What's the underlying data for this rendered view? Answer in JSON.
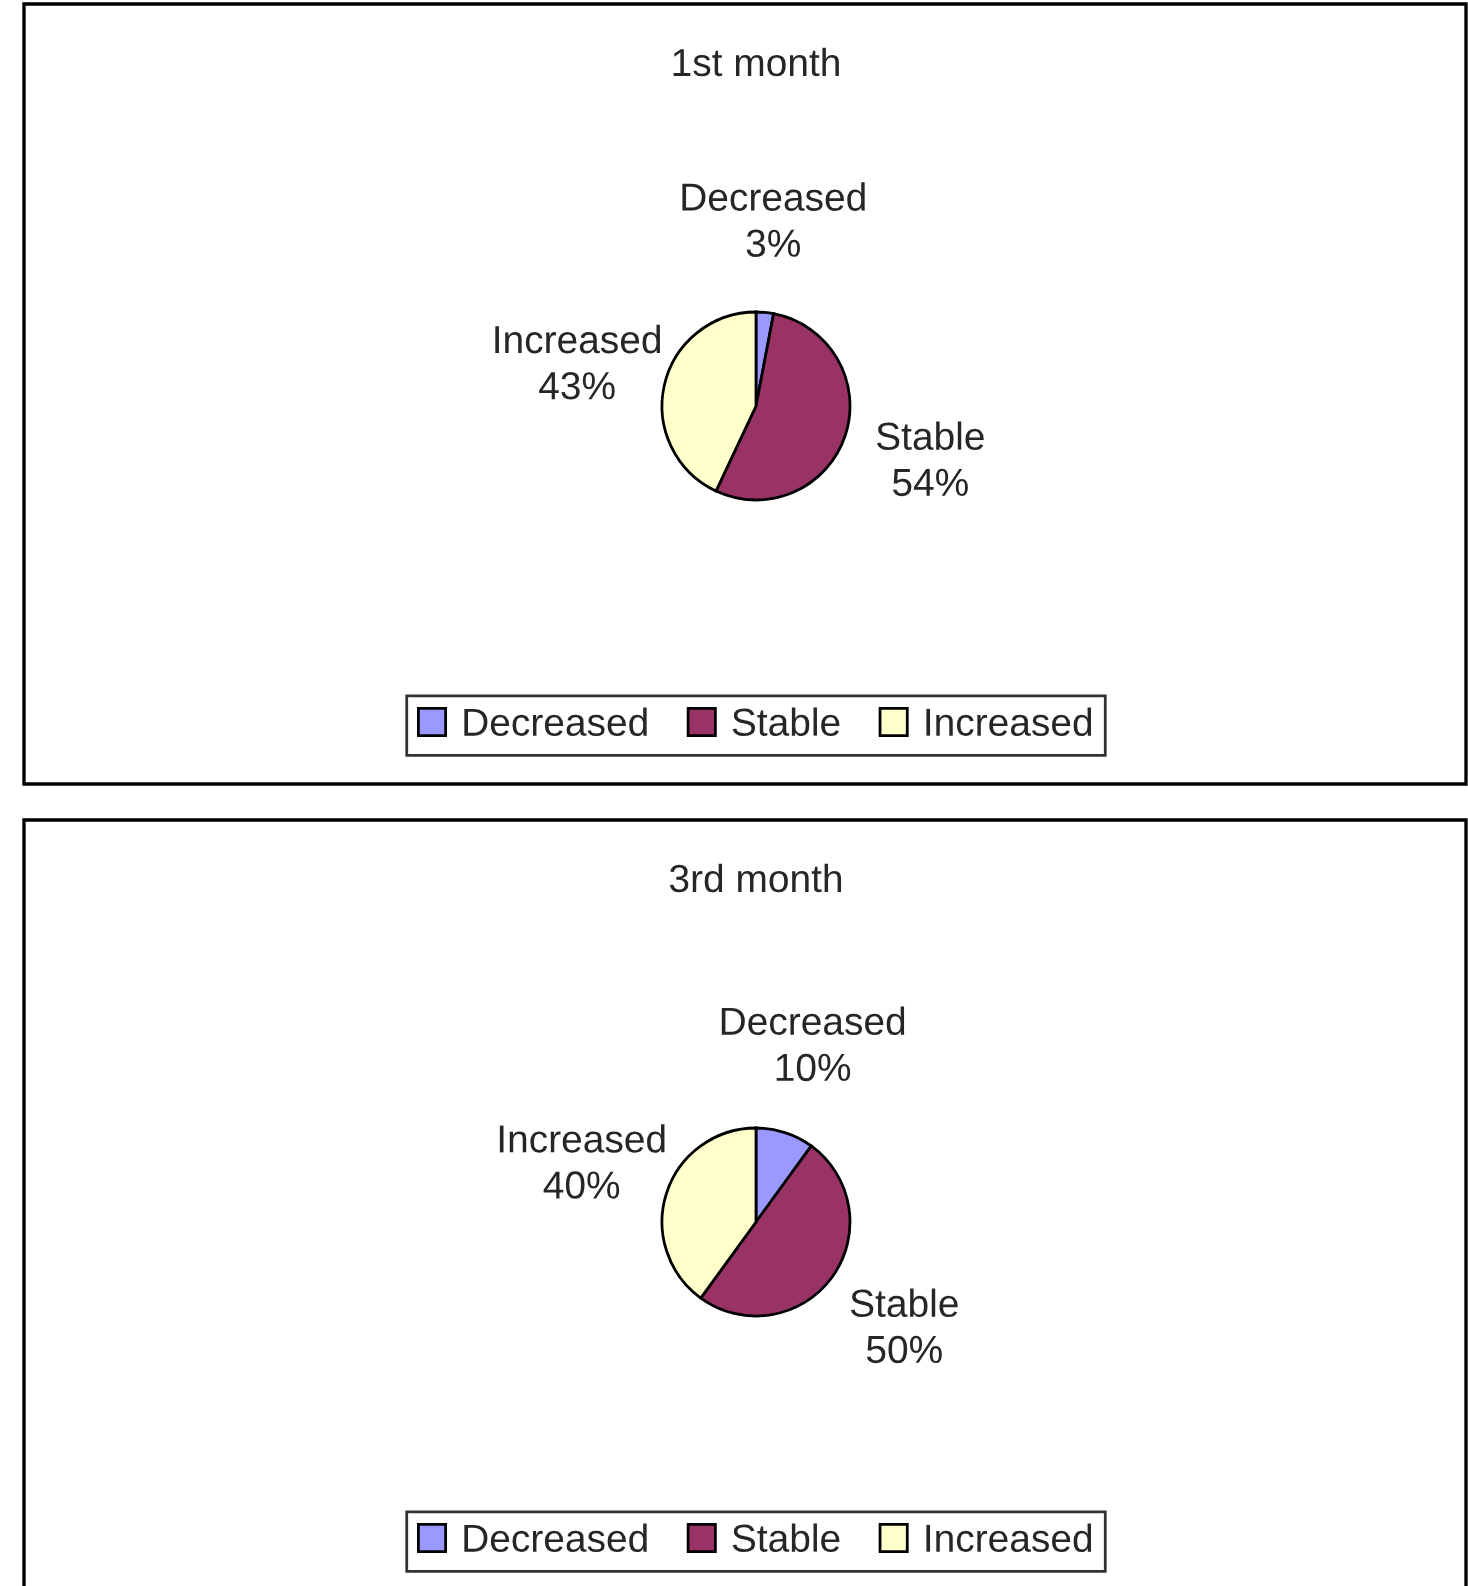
{
  "chart_data": [
    {
      "type": "pie",
      "title": "1st month",
      "categories": [
        "Decreased",
        "Stable",
        "Increased"
      ],
      "values": [
        3,
        54,
        43
      ],
      "value_labels": [
        "3%",
        "54%",
        "43%"
      ],
      "colors": [
        "#9999ff",
        "#993366",
        "#ffffcc"
      ],
      "legend": "bottom"
    },
    {
      "type": "pie",
      "title": "3rd month",
      "categories": [
        "Decreased",
        "Stable",
        "Increased"
      ],
      "values": [
        10,
        50,
        40
      ],
      "value_labels": [
        "10%",
        "50%",
        "40%"
      ],
      "colors": [
        "#9999ff",
        "#993366",
        "#ffffcc"
      ],
      "legend": "bottom"
    }
  ]
}
